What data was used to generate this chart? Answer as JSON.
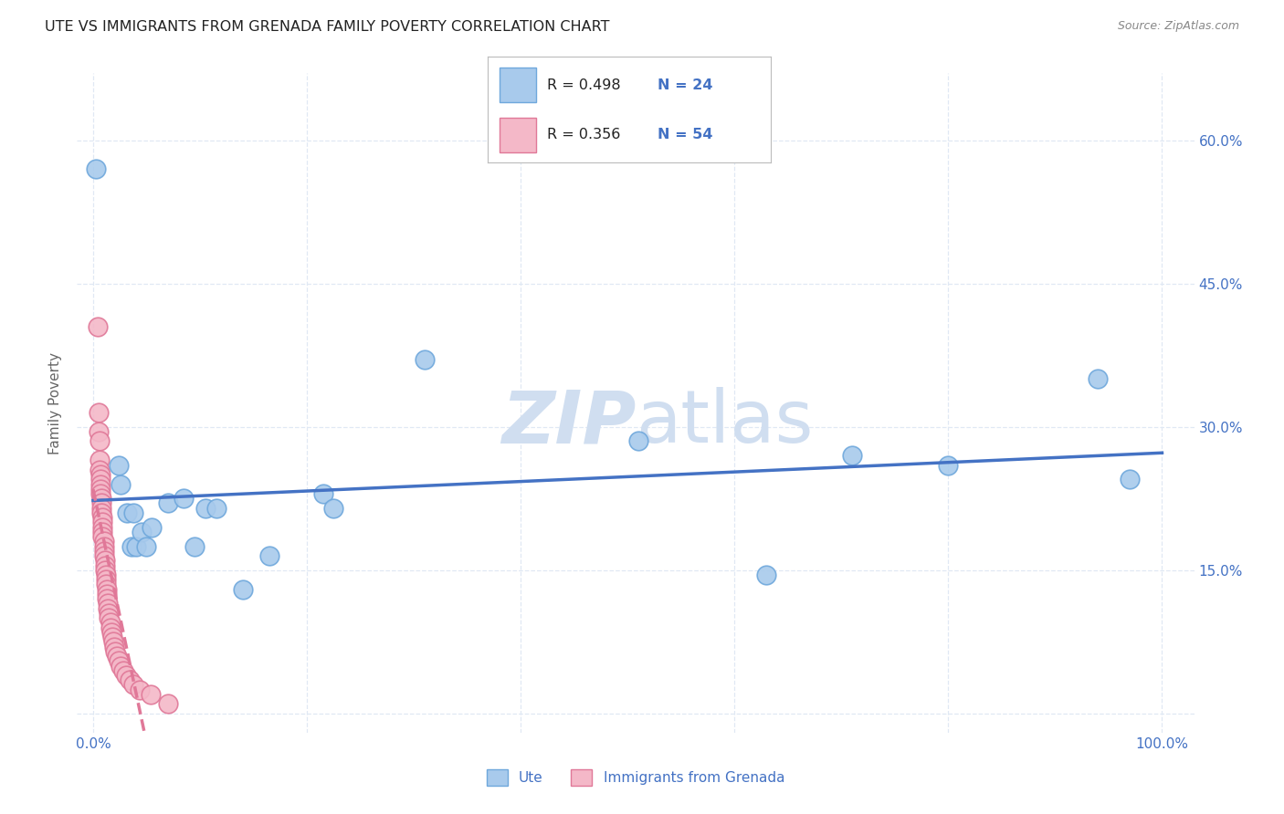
{
  "title": "UTE VS IMMIGRANTS FROM GRENADA FAMILY POVERTY CORRELATION CHART",
  "source": "Source: ZipAtlas.com",
  "ylabel": "Family Poverty",
  "x_ticks": [
    0.0,
    0.2,
    0.4,
    0.6,
    0.8,
    1.0
  ],
  "y_ticks": [
    0.0,
    0.15,
    0.3,
    0.45,
    0.6
  ],
  "ute_color": "#A8CAEC",
  "ute_edge_color": "#6FA8DC",
  "grenada_color": "#F4B8C8",
  "grenada_edge_color": "#E07898",
  "ute_line_color": "#4472C4",
  "grenada_line_color": "#E07898",
  "watermark_color": "#D0DEF0",
  "legend_color": "#4472C4",
  "ute_scatter": [
    [
      0.003,
      0.57
    ],
    [
      0.024,
      0.26
    ],
    [
      0.026,
      0.24
    ],
    [
      0.032,
      0.21
    ],
    [
      0.036,
      0.175
    ],
    [
      0.038,
      0.21
    ],
    [
      0.04,
      0.175
    ],
    [
      0.045,
      0.19
    ],
    [
      0.05,
      0.175
    ],
    [
      0.055,
      0.195
    ],
    [
      0.07,
      0.22
    ],
    [
      0.085,
      0.225
    ],
    [
      0.095,
      0.175
    ],
    [
      0.105,
      0.215
    ],
    [
      0.115,
      0.215
    ],
    [
      0.14,
      0.13
    ],
    [
      0.215,
      0.23
    ],
    [
      0.225,
      0.215
    ],
    [
      0.165,
      0.165
    ],
    [
      0.31,
      0.37
    ],
    [
      0.51,
      0.285
    ],
    [
      0.63,
      0.145
    ],
    [
      0.71,
      0.27
    ],
    [
      0.8,
      0.26
    ],
    [
      0.94,
      0.35
    ],
    [
      0.97,
      0.245
    ]
  ],
  "grenada_scatter": [
    [
      0.004,
      0.405
    ],
    [
      0.005,
      0.315
    ],
    [
      0.005,
      0.295
    ],
    [
      0.006,
      0.285
    ],
    [
      0.006,
      0.265
    ],
    [
      0.006,
      0.255
    ],
    [
      0.007,
      0.25
    ],
    [
      0.007,
      0.245
    ],
    [
      0.007,
      0.24
    ],
    [
      0.007,
      0.235
    ],
    [
      0.007,
      0.23
    ],
    [
      0.008,
      0.225
    ],
    [
      0.008,
      0.22
    ],
    [
      0.008,
      0.215
    ],
    [
      0.008,
      0.21
    ],
    [
      0.009,
      0.205
    ],
    [
      0.009,
      0.2
    ],
    [
      0.009,
      0.195
    ],
    [
      0.009,
      0.19
    ],
    [
      0.009,
      0.185
    ],
    [
      0.01,
      0.18
    ],
    [
      0.01,
      0.175
    ],
    [
      0.01,
      0.17
    ],
    [
      0.01,
      0.165
    ],
    [
      0.011,
      0.16
    ],
    [
      0.011,
      0.155
    ],
    [
      0.011,
      0.15
    ],
    [
      0.012,
      0.145
    ],
    [
      0.012,
      0.14
    ],
    [
      0.012,
      0.135
    ],
    [
      0.013,
      0.13
    ],
    [
      0.013,
      0.125
    ],
    [
      0.013,
      0.12
    ],
    [
      0.014,
      0.115
    ],
    [
      0.014,
      0.11
    ],
    [
      0.015,
      0.105
    ],
    [
      0.015,
      0.1
    ],
    [
      0.016,
      0.095
    ],
    [
      0.016,
      0.09
    ],
    [
      0.017,
      0.085
    ],
    [
      0.018,
      0.08
    ],
    [
      0.019,
      0.075
    ],
    [
      0.02,
      0.07
    ],
    [
      0.021,
      0.065
    ],
    [
      0.022,
      0.06
    ],
    [
      0.024,
      0.055
    ],
    [
      0.026,
      0.05
    ],
    [
      0.028,
      0.045
    ],
    [
      0.031,
      0.04
    ],
    [
      0.034,
      0.035
    ],
    [
      0.038,
      0.03
    ],
    [
      0.044,
      0.025
    ],
    [
      0.054,
      0.02
    ],
    [
      0.07,
      0.01
    ]
  ],
  "xlim": [
    -0.015,
    1.03
  ],
  "ylim": [
    -0.02,
    0.67
  ],
  "background_color": "#FFFFFF",
  "grid_color": "#E0E8F4",
  "title_fontsize": 11.5,
  "tick_label_color": "#4472C4"
}
